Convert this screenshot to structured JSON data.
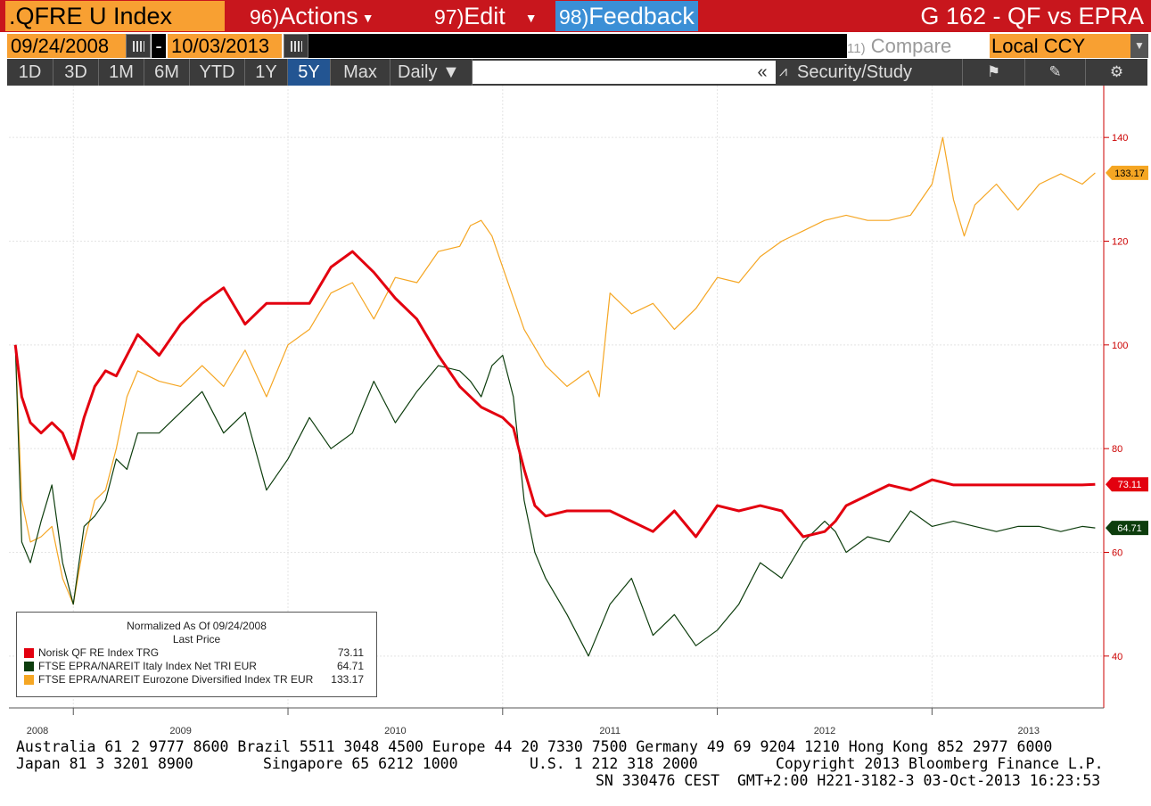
{
  "header": {
    "ticker": ".QFRE U Index",
    "actions_num": "96)",
    "actions_label": "Actions",
    "edit_num": "97)",
    "edit_label": "Edit",
    "feedback_num": "98)",
    "feedback_label": "Feedback",
    "title": "G 162 - QF vs EPRA"
  },
  "controls": {
    "start_date": "09/24/2008",
    "end_date": "10/03/2013",
    "separator": "-",
    "compare_num": "11)",
    "compare_label": "Compare",
    "currency": "Local CCY"
  },
  "toolbar": {
    "tabs": [
      "1D",
      "3D",
      "1M",
      "6M",
      "YTD",
      "1Y",
      "5Y",
      "Max"
    ],
    "active_tab": "5Y",
    "frequency": "Daily ▼",
    "collapse": "«",
    "security_study": "Security/Study"
  },
  "colors": {
    "red": "#e3000f",
    "green": "#0d3d0d",
    "orange": "#f5a623",
    "axis_red": "#cc0000"
  },
  "legend": {
    "header1": "Normalized As Of 09/24/2008",
    "header2": "Last Price",
    "items": [
      {
        "label": "Norisk QF RE Index TRG",
        "value": "73.11",
        "color": "#e3000f"
      },
      {
        "label": "FTSE EPRA/NAREIT Italy Index Net TRI EUR",
        "value": "64.71",
        "color": "#0d3d0d"
      },
      {
        "label": "FTSE EPRA/NAREIT Eurozone Diversified Index TR EUR",
        "value": "133.17",
        "color": "#f5a623"
      }
    ]
  },
  "chart_data": {
    "type": "line",
    "x_ticks": [
      "2008",
      "2009",
      "2010",
      "2011",
      "2012",
      "2013"
    ],
    "ylim": [
      30,
      150
    ],
    "y_ticks": [
      40,
      60,
      80,
      100,
      120,
      140
    ],
    "last_labels": [
      "133.17",
      "73.11",
      "64.71"
    ],
    "grid": true,
    "series": [
      {
        "name": "Norisk QF RE Index TRG",
        "color": "#e3000f",
        "x": [
          2008.73,
          2008.76,
          2008.8,
          2008.85,
          2008.9,
          2008.95,
          2009.0,
          2009.05,
          2009.1,
          2009.15,
          2009.2,
          2009.3,
          2009.4,
          2009.5,
          2009.6,
          2009.7,
          2009.8,
          2009.9,
          2010.0,
          2010.1,
          2010.2,
          2010.3,
          2010.4,
          2010.5,
          2010.6,
          2010.7,
          2010.8,
          2010.9,
          2011.0,
          2011.05,
          2011.1,
          2011.15,
          2011.2,
          2011.3,
          2011.4,
          2011.5,
          2011.6,
          2011.7,
          2011.8,
          2011.9,
          2012.0,
          2012.1,
          2012.2,
          2012.3,
          2012.4,
          2012.5,
          2012.55,
          2012.6,
          2012.7,
          2012.8,
          2012.9,
          2013.0,
          2013.1,
          2013.2,
          2013.3,
          2013.4,
          2013.5,
          2013.6,
          2013.7,
          2013.76
        ],
        "y": [
          100,
          90,
          85,
          83,
          85,
          83,
          78,
          86,
          92,
          95,
          94,
          102,
          98,
          104,
          108,
          111,
          104,
          108,
          108,
          108,
          115,
          118,
          114,
          109,
          105,
          98,
          92,
          88,
          86,
          84,
          76,
          69,
          67,
          68,
          68,
          68,
          66,
          64,
          68,
          63,
          69,
          68,
          69,
          68,
          63,
          64,
          66,
          69,
          71,
          73,
          72,
          74,
          73,
          73,
          73,
          73,
          73,
          73,
          73,
          73.11
        ]
      },
      {
        "name": "FTSE EPRA/NAREIT Italy Index Net TRI EUR",
        "color": "#0d3d0d",
        "x": [
          2008.73,
          2008.76,
          2008.8,
          2008.85,
          2008.9,
          2008.95,
          2009.0,
          2009.05,
          2009.1,
          2009.15,
          2009.2,
          2009.25,
          2009.3,
          2009.4,
          2009.5,
          2009.6,
          2009.7,
          2009.8,
          2009.9,
          2010.0,
          2010.1,
          2010.2,
          2010.3,
          2010.4,
          2010.5,
          2010.6,
          2010.7,
          2010.8,
          2010.85,
          2010.9,
          2010.95,
          2011.0,
          2011.05,
          2011.1,
          2011.15,
          2011.2,
          2011.3,
          2011.4,
          2011.5,
          2011.6,
          2011.7,
          2011.8,
          2011.9,
          2012.0,
          2012.1,
          2012.2,
          2012.3,
          2012.4,
          2012.5,
          2012.55,
          2012.6,
          2012.7,
          2012.8,
          2012.9,
          2013.0,
          2013.1,
          2013.2,
          2013.3,
          2013.4,
          2013.5,
          2013.6,
          2013.7,
          2013.76
        ],
        "y": [
          100,
          62,
          58,
          66,
          73,
          58,
          50,
          65,
          67,
          70,
          78,
          76,
          83,
          83,
          87,
          91,
          83,
          87,
          72,
          78,
          86,
          80,
          83,
          93,
          85,
          91,
          96,
          95,
          93,
          90,
          96,
          98,
          90,
          70,
          60,
          55,
          48,
          40,
          50,
          55,
          44,
          48,
          42,
          45,
          50,
          58,
          55,
          62,
          66,
          64,
          60,
          63,
          62,
          68,
          65,
          66,
          65,
          64,
          65,
          65,
          64,
          65,
          64.71
        ]
      },
      {
        "name": "FTSE EPRA/NAREIT Eurozone Diversified Index TR EUR",
        "color": "#f5a623",
        "x": [
          2008.73,
          2008.76,
          2008.8,
          2008.85,
          2008.9,
          2008.95,
          2009.0,
          2009.05,
          2009.1,
          2009.15,
          2009.2,
          2009.25,
          2009.3,
          2009.4,
          2009.5,
          2009.6,
          2009.7,
          2009.8,
          2009.9,
          2010.0,
          2010.1,
          2010.2,
          2010.3,
          2010.4,
          2010.5,
          2010.6,
          2010.7,
          2010.8,
          2010.85,
          2010.9,
          2010.95,
          2011.0,
          2011.1,
          2011.2,
          2011.3,
          2011.4,
          2011.45,
          2011.5,
          2011.6,
          2011.7,
          2011.8,
          2011.9,
          2012.0,
          2012.1,
          2012.2,
          2012.3,
          2012.4,
          2012.5,
          2012.6,
          2012.7,
          2012.8,
          2012.9,
          2013.0,
          2013.05,
          2013.1,
          2013.15,
          2013.2,
          2013.3,
          2013.4,
          2013.5,
          2013.6,
          2013.7,
          2013.76
        ],
        "y": [
          100,
          70,
          62,
          63,
          65,
          55,
          50,
          62,
          70,
          72,
          80,
          90,
          95,
          93,
          92,
          96,
          92,
          99,
          90,
          100,
          103,
          110,
          112,
          105,
          113,
          112,
          118,
          119,
          123,
          124,
          121,
          115,
          103,
          96,
          92,
          95,
          90,
          110,
          106,
          108,
          103,
          107,
          113,
          112,
          117,
          120,
          122,
          124,
          125,
          124,
          124,
          125,
          131,
          140,
          128,
          121,
          127,
          131,
          126,
          131,
          133,
          131,
          133.17
        ]
      }
    ]
  },
  "footer": {
    "line1": "Australia 61 2 9777 8600 Brazil 5511 3048 4500 Europe 44 20 7330 7500 Germany 49 69 9204 1210 Hong Kong 852 2977 6000",
    "line2a": "Japan 81 3 3201 8900",
    "line2b": "Singapore 65 6212 1000",
    "line2c": "U.S. 1 212 318 2000",
    "line2d": "Copyright 2013 Bloomberg Finance L.P.",
    "line3": "SN 330476 CEST  GMT+2:00 H221-3182-3 03-Oct-2013 16:23:53"
  }
}
